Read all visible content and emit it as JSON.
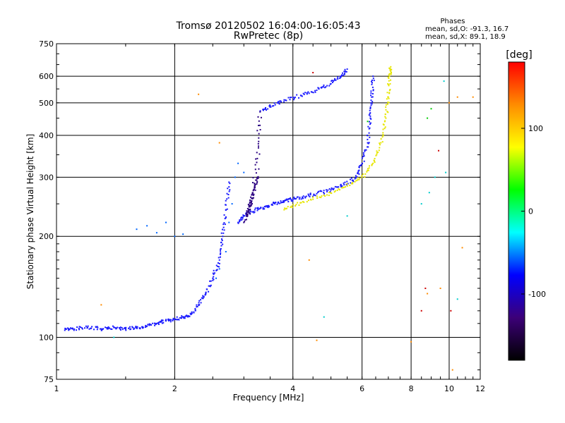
{
  "chart_data": {
    "type": "scatter",
    "title": "Tromsø 20120502 16:04:00-16:05:43",
    "subtitle": "RwPretec (8p)",
    "xlabel": "Frequency [MHz]",
    "ylabel": "Stationary phase Virtual Height [km]",
    "x_scale": "log",
    "y_scale": "log",
    "xlim": [
      1,
      12
    ],
    "ylim": [
      75,
      750
    ],
    "x_ticks": [
      1,
      2,
      4,
      6,
      8,
      10,
      12
    ],
    "y_ticks": [
      75,
      100,
      200,
      300,
      400,
      500,
      600,
      750
    ],
    "grid": true,
    "phases_title": "Phases",
    "phases_lines": [
      "mean, sd,O: -91.3, 16.7",
      "mean, sd,X:  89.1, 18.9"
    ],
    "colorbar": {
      "label": "[deg]",
      "range": [
        -180,
        180
      ],
      "ticks": [
        100,
        0,
        -100
      ],
      "colors": [
        "#ff0000",
        "#ff8c00",
        "#ffff00",
        "#00ff00",
        "#00ffff",
        "#0000ff",
        "#3c0078",
        "#000000"
      ]
    },
    "series": [
      {
        "color": "#1a1aff",
        "points": [
          [
            1.05,
            105
          ],
          [
            1.1,
            106
          ],
          [
            1.2,
            107
          ],
          [
            1.3,
            106
          ],
          [
            1.4,
            107
          ],
          [
            1.5,
            106
          ],
          [
            1.6,
            107
          ],
          [
            1.7,
            108
          ],
          [
            1.8,
            110
          ],
          [
            1.9,
            112
          ],
          [
            2.0,
            113
          ],
          [
            2.1,
            115
          ],
          [
            2.2,
            117
          ],
          [
            2.3,
            125
          ],
          [
            2.4,
            135
          ],
          [
            2.5,
            150
          ],
          [
            2.6,
            170
          ],
          [
            2.65,
            200
          ],
          [
            2.7,
            240
          ],
          [
            2.75,
            290
          ]
        ]
      },
      {
        "color": "#1a1aff",
        "points": [
          [
            2.9,
            220
          ],
          [
            3.0,
            230
          ],
          [
            3.2,
            240
          ],
          [
            3.4,
            245
          ],
          [
            3.6,
            250
          ],
          [
            3.8,
            255
          ],
          [
            4.0,
            258
          ],
          [
            4.3,
            262
          ],
          [
            4.6,
            268
          ],
          [
            5.0,
            275
          ],
          [
            5.4,
            285
          ],
          [
            5.8,
            300
          ],
          [
            6.0,
            330
          ],
          [
            6.2,
            380
          ],
          [
            6.3,
            450
          ],
          [
            6.35,
            520
          ],
          [
            6.4,
            600
          ]
        ]
      },
      {
        "color": "#1a1aff",
        "points": [
          [
            3.3,
            470
          ],
          [
            3.5,
            490
          ],
          [
            3.8,
            510
          ],
          [
            4.2,
            525
          ],
          [
            4.6,
            545
          ],
          [
            5.0,
            570
          ],
          [
            5.3,
            600
          ],
          [
            5.5,
            630
          ]
        ]
      },
      {
        "color": "#e6e600",
        "points": [
          [
            3.8,
            240
          ],
          [
            4.2,
            252
          ],
          [
            4.8,
            265
          ],
          [
            5.4,
            280
          ],
          [
            6.0,
            300
          ],
          [
            6.4,
            330
          ],
          [
            6.7,
            380
          ],
          [
            6.9,
            450
          ],
          [
            7.0,
            520
          ],
          [
            7.05,
            600
          ],
          [
            7.1,
            640
          ]
        ]
      },
      {
        "color": "#2a0080",
        "points": [
          [
            3.05,
            230
          ],
          [
            3.1,
            245
          ],
          [
            3.15,
            260
          ],
          [
            3.2,
            280
          ],
          [
            3.25,
            300
          ],
          [
            3.3,
            470
          ],
          [
            3.15,
            250
          ],
          [
            3.0,
            220
          ]
        ]
      },
      {
        "color": "#0066ff",
        "points": [
          [
            1.6,
            210
          ],
          [
            1.7,
            215
          ],
          [
            1.8,
            205
          ],
          [
            1.9,
            220
          ],
          [
            2.0,
            200
          ],
          [
            2.1,
            203
          ],
          [
            2.7,
            180
          ],
          [
            2.75,
            220
          ],
          [
            2.8,
            250
          ],
          [
            2.85,
            300
          ],
          [
            2.9,
            330
          ],
          [
            3.0,
            310
          ],
          [
            2.6,
            160
          ],
          [
            2.55,
            150
          ]
        ]
      },
      {
        "color": "#ff8c00",
        "points": [
          [
            1.3,
            125
          ],
          [
            2.3,
            530
          ],
          [
            2.6,
            380
          ],
          [
            4.4,
            170
          ],
          [
            4.6,
            98
          ],
          [
            8.0,
            97
          ],
          [
            8.8,
            135
          ],
          [
            9.5,
            140
          ],
          [
            10.0,
            500
          ],
          [
            10.5,
            520
          ],
          [
            11.5,
            520
          ],
          [
            10.2,
            80
          ],
          [
            10.8,
            185
          ]
        ]
      },
      {
        "color": "#00cccc",
        "points": [
          [
            1.4,
            100
          ],
          [
            4.8,
            115
          ],
          [
            5.5,
            230
          ],
          [
            8.5,
            250
          ],
          [
            9.2,
            300
          ],
          [
            9.7,
            580
          ],
          [
            10.5,
            130
          ],
          [
            9.8,
            310
          ],
          [
            8.9,
            270
          ]
        ]
      },
      {
        "color": "#cc0000",
        "points": [
          [
            4.5,
            615
          ],
          [
            8.5,
            120
          ],
          [
            9.4,
            360
          ],
          [
            10.1,
            120
          ],
          [
            8.7,
            140
          ]
        ]
      },
      {
        "color": "#00cc00",
        "points": [
          [
            6.2,
            440
          ],
          [
            8.8,
            450
          ],
          [
            9.0,
            480
          ]
        ]
      }
    ]
  }
}
